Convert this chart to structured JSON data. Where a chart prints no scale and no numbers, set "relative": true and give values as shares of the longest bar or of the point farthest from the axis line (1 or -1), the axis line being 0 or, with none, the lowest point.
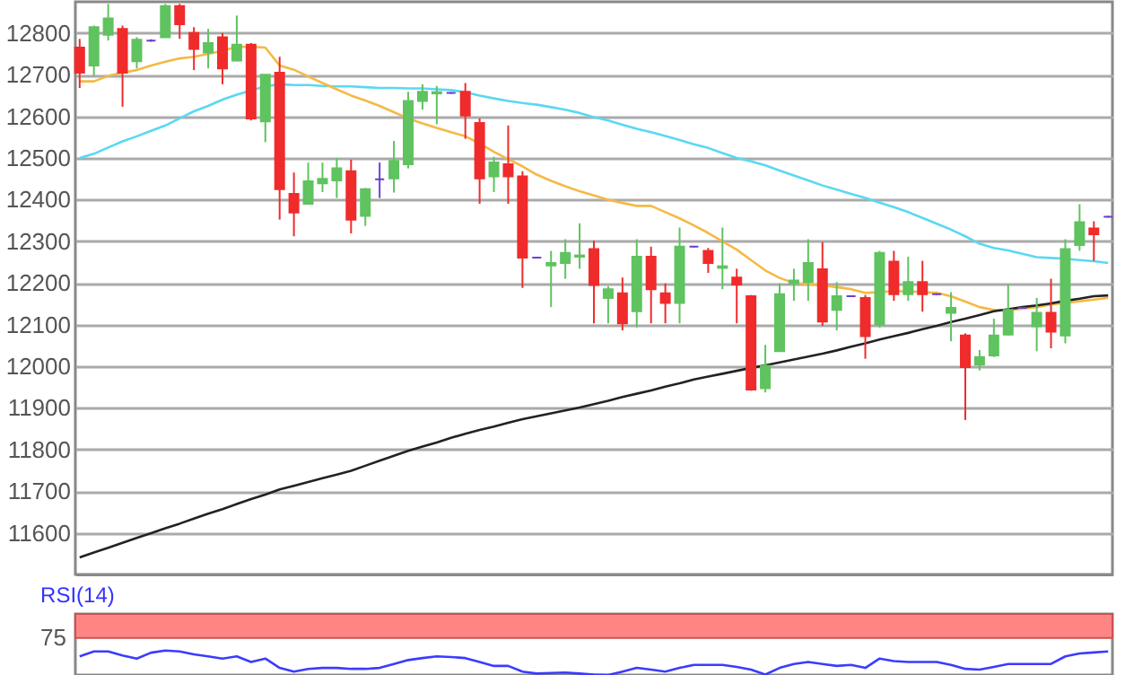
{
  "chart_data": [
    {
      "type": "candlestick",
      "categories": [
        null,
        null,
        null,
        null,
        null,
        null,
        null,
        null,
        null,
        null,
        null,
        null,
        null,
        null,
        null,
        null,
        null,
        null,
        null,
        null,
        null,
        null,
        null,
        null,
        null,
        null,
        null,
        null,
        null,
        null,
        null,
        null,
        null,
        null,
        null,
        null,
        null,
        null,
        null,
        null,
        null,
        null,
        null,
        null,
        null,
        null,
        null,
        null,
        null,
        null,
        null,
        null,
        null,
        null,
        null,
        null,
        null,
        null,
        null,
        null,
        null,
        null,
        null,
        null,
        null,
        null,
        null,
        null,
        null,
        null,
        null,
        null,
        null
      ],
      "ohlc": [
        [
          12765,
          12786,
          12668,
          12705
        ],
        [
          12722,
          12818,
          12697,
          12814
        ],
        [
          12796,
          12870,
          12782,
          12835
        ],
        [
          12810,
          12818,
          12623,
          12705
        ],
        [
          12732,
          12790,
          12715,
          12784
        ],
        [
          12782,
          12785,
          12779,
          12782
        ],
        [
          12790,
          12870,
          12790,
          12865
        ],
        [
          12865,
          12870,
          12786,
          12821
        ],
        [
          12800,
          12814,
          12711,
          12762
        ],
        [
          12753,
          12810,
          12715,
          12776
        ],
        [
          12790,
          12800,
          12677,
          12715
        ],
        [
          12734,
          12842,
          12732,
          12772
        ],
        [
          12772,
          12776,
          12590,
          12595
        ],
        [
          12588,
          12700,
          12538,
          12700
        ],
        [
          12705,
          12743,
          12352,
          12425
        ],
        [
          12414,
          12465,
          12312,
          12369
        ],
        [
          12390,
          12489,
          12390,
          12444
        ],
        [
          12439,
          12489,
          12418,
          12450
        ],
        [
          12446,
          12500,
          12404,
          12475
        ],
        [
          12468,
          12496,
          12319,
          12352
        ],
        [
          12361,
          12428,
          12337,
          12425
        ],
        [
          12449,
          12489,
          12404,
          12449
        ],
        [
          12451,
          12541,
          12417,
          12493
        ],
        [
          12485,
          12659,
          12475,
          12637
        ],
        [
          12637,
          12677,
          12616,
          12659
        ],
        [
          12655,
          12673,
          12581,
          12658
        ],
        [
          12656,
          12658,
          12654,
          12656
        ],
        [
          12659,
          12680,
          12546,
          12602
        ],
        [
          12584,
          12595,
          12390,
          12451
        ],
        [
          12456,
          12503,
          12418,
          12489
        ],
        [
          12485,
          12578,
          12390,
          12456
        ],
        [
          12456,
          12468,
          12188,
          12261
        ],
        [
          12261,
          12263,
          12259,
          12261
        ],
        [
          12242,
          12277,
          12142,
          12248
        ],
        [
          12248,
          12305,
          12210,
          12272
        ],
        [
          12263,
          12343,
          12234,
          12266
        ],
        [
          12281,
          12301,
          12103,
          12195
        ],
        [
          12164,
          12192,
          12103,
          12185
        ],
        [
          12175,
          12213,
          12086,
          12103
        ],
        [
          12132,
          12305,
          12093,
          12263
        ],
        [
          12263,
          12287,
          12103,
          12185
        ],
        [
          12175,
          12199,
          12103,
          12152
        ],
        [
          12152,
          12333,
          12103,
          12287
        ],
        [
          12287,
          12289,
          12285,
          12287
        ],
        [
          12277,
          12284,
          12224,
          12248
        ],
        [
          12236,
          12333,
          12185,
          12240
        ],
        [
          12213,
          12234,
          12103,
          12196
        ],
        [
          12168,
          12171,
          11941,
          11944
        ],
        [
          11947,
          12051,
          11937,
          12001
        ],
        [
          12036,
          12199,
          12036,
          12173
        ],
        [
          12199,
          12234,
          12157,
          12206
        ],
        [
          12202,
          12305,
          12157,
          12248
        ],
        [
          12233,
          12298,
          12097,
          12107
        ],
        [
          12135,
          12202,
          12086,
          12168
        ],
        [
          12168,
          12170,
          12166,
          12168
        ],
        [
          12164,
          12171,
          12018,
          12072
        ],
        [
          12100,
          12277,
          12093,
          12272
        ],
        [
          12251,
          12277,
          12157,
          12173
        ],
        [
          12173,
          12263,
          12157,
          12202
        ],
        [
          12202,
          12253,
          12131,
          12173
        ],
        [
          12173,
          12175,
          12171,
          12173
        ],
        [
          12128,
          12178,
          12060,
          12140
        ],
        [
          12074,
          12079,
          11871,
          11998
        ],
        [
          12004,
          12039,
          11990,
          12022
        ],
        [
          12026,
          12114,
          12022,
          12074
        ],
        [
          12076,
          12196,
          12074,
          12135
        ],
        [
          12140,
          12142,
          12138,
          12140
        ],
        [
          12096,
          12164,
          12036,
          12128
        ],
        [
          12128,
          12210,
          12043,
          12083
        ],
        [
          12074,
          12305,
          12055,
          12281
        ],
        [
          12291,
          12389,
          12277,
          12346
        ],
        [
          12331,
          12348,
          12253,
          12317
        ],
        [
          12359,
          12361,
          12357,
          12359
        ]
      ],
      "colors": [
        "#f02b2b",
        "#5fc35f",
        "#5fc35f",
        "#f02b2b",
        "#5fc35f",
        "#6a3fd0",
        "#5fc35f",
        "#f02b2b",
        "#f02b2b",
        "#5fc35f",
        "#f02b2b",
        "#5fc35f",
        "#f02b2b",
        "#5fc35f",
        "#f02b2b",
        "#f02b2b",
        "#5fc35f",
        "#5fc35f",
        "#5fc35f",
        "#f02b2b",
        "#5fc35f",
        "#6a3fd0",
        "#5fc35f",
        "#5fc35f",
        "#5fc35f",
        "#5fc35f",
        "#6a3fd0",
        "#f02b2b",
        "#f02b2b",
        "#5fc35f",
        "#f02b2b",
        "#f02b2b",
        "#6a3fd0",
        "#5fc35f",
        "#5fc35f",
        "#5fc35f",
        "#f02b2b",
        "#5fc35f",
        "#f02b2b",
        "#5fc35f",
        "#f02b2b",
        "#f02b2b",
        "#5fc35f",
        "#6a3fd0",
        "#f02b2b",
        "#5fc35f",
        "#f02b2b",
        "#f02b2b",
        "#5fc35f",
        "#5fc35f",
        "#5fc35f",
        "#5fc35f",
        "#f02b2b",
        "#5fc35f",
        "#6a3fd0",
        "#f02b2b",
        "#5fc35f",
        "#f02b2b",
        "#5fc35f",
        "#f02b2b",
        "#6a3fd0",
        "#5fc35f",
        "#f02b2b",
        "#5fc35f",
        "#5fc35f",
        "#5fc35f",
        "#6a3fd0",
        "#5fc35f",
        "#f02b2b",
        "#5fc35f",
        "#5fc35f",
        "#f02b2b",
        "#6a3fd0"
      ],
      "series": [
        {
          "type": "line",
          "color": "#5ad8f2",
          "values": [
            12500,
            12510,
            12525,
            12540,
            12552,
            12565,
            12578,
            12595,
            12612,
            12625,
            12640,
            12652,
            12662,
            12672,
            12677,
            12675,
            12675,
            12673,
            12672,
            12672,
            12670,
            12668,
            12668,
            12667,
            12667,
            12665,
            12663,
            12658,
            12650,
            12643,
            12637,
            12632,
            12628,
            12622,
            12616,
            12608,
            12598,
            12590,
            12580,
            12570,
            12562,
            12553,
            12543,
            12533,
            12524,
            12512,
            12500,
            12492,
            12482,
            12470,
            12458,
            12446,
            12434,
            12424,
            12414,
            12404,
            12393,
            12382,
            12370,
            12356,
            12342,
            12328,
            12312,
            12294,
            12284,
            12278,
            12270,
            12262,
            12260,
            12258,
            12255,
            12252,
            12248
          ]
        },
        {
          "type": "line",
          "color": "#f5b945",
          "values": [
            12684,
            12684,
            12697,
            12705,
            12711,
            12722,
            12731,
            12739,
            12743,
            12750,
            12757,
            12767,
            12767,
            12765,
            12722,
            12712,
            12696,
            12680,
            12665,
            12650,
            12638,
            12625,
            12610,
            12595,
            12583,
            12572,
            12562,
            12552,
            12535,
            12515,
            12497,
            12480,
            12460,
            12445,
            12432,
            12420,
            12410,
            12400,
            12392,
            12385,
            12385,
            12370,
            12355,
            12338,
            12320,
            12300,
            12280,
            12255,
            12230,
            12212,
            12200,
            12197,
            12194,
            12190,
            12185,
            12176,
            12178,
            12180,
            12180,
            12178,
            12176,
            12168,
            12155,
            12142,
            12135,
            12135,
            12138,
            12142,
            12148,
            12152,
            12156,
            12160,
            12164
          ]
        },
        {
          "type": "line",
          "color": "#222222",
          "values": [
            11541,
            11553,
            11564,
            11576,
            11588,
            11599,
            11611,
            11622,
            11634,
            11646,
            11657,
            11669,
            11681,
            11692,
            11704,
            11713,
            11722,
            11731,
            11740,
            11749,
            11761,
            11773,
            11785,
            11797,
            11807,
            11817,
            11828,
            11838,
            11847,
            11855,
            11864,
            11873,
            11880,
            11887,
            11894,
            11901,
            11909,
            11917,
            11926,
            11934,
            11942,
            11951,
            11959,
            11968,
            11975,
            11982,
            11989,
            11996,
            12002,
            12009,
            12016,
            12023,
            12030,
            12038,
            12047,
            12055,
            12064,
            12072,
            12080,
            12089,
            12097,
            12106,
            12114,
            12123,
            12132,
            12137,
            12142,
            12146,
            12151,
            12157,
            12162,
            12168,
            12170
          ]
        }
      ],
      "ylim": [
        11500,
        12875
      ],
      "yticks": [
        11600,
        11700,
        11800,
        11900,
        12000,
        12100,
        12200,
        12300,
        12400,
        12500,
        12600,
        12700,
        12800
      ],
      "grid": "y",
      "tick_labels": "y"
    },
    {
      "type": "line",
      "title": "RSI(14)",
      "categories": [
        null,
        null,
        null,
        null,
        null,
        null,
        null,
        null,
        null,
        null,
        null,
        null,
        null,
        null,
        null,
        null,
        null,
        null,
        null,
        null,
        null,
        null,
        null,
        null,
        null,
        null,
        null,
        null,
        null,
        null,
        null,
        null,
        null,
        null,
        null,
        null,
        null,
        null,
        null,
        null,
        null,
        null,
        null,
        null,
        null,
        null,
        null,
        null,
        null,
        null,
        null,
        null,
        null,
        null,
        null,
        null,
        null,
        null,
        null,
        null,
        null,
        null,
        null,
        null,
        null,
        null,
        null,
        null,
        null,
        null,
        null,
        null,
        null
      ],
      "series": [
        {
          "color": "#3b3bff",
          "values": [
            0.76,
            0.96,
            0.96,
            0.8,
            0.67,
            0.91,
            1,
            0.96,
            0.84,
            0.76,
            0.67,
            0.76,
            0.53,
            0.67,
            0.29,
            0.14,
            0.25,
            0.29,
            0.29,
            0.25,
            0.25,
            0.29,
            0.45,
            0.61,
            0.69,
            0.76,
            0.73,
            0.69,
            0.53,
            0.37,
            0.37,
            0.14,
            0.06,
            0.08,
            0.1,
            0.06,
            0.02,
            0,
            0.14,
            0.29,
            0.22,
            0.14,
            0.29,
            0.41,
            0.41,
            0.41,
            0.33,
            0.22,
            0.02,
            0.29,
            0.45,
            0.53,
            0.45,
            0.37,
            0.41,
            0.29,
            0.67,
            0.57,
            0.53,
            0.53,
            0.53,
            0.41,
            0.25,
            0.22,
            0.33,
            0.45,
            0.45,
            0.45,
            0.45,
            0.76,
            0.88,
            0.92,
            0.96
          ]
        }
      ],
      "relative": true,
      "bands": [
        {
          "axis": "y",
          "from": 1.51,
          "to": 2.49,
          "label": "75",
          "color": "#ff8585"
        }
      ],
      "tick_labels": false
    }
  ]
}
